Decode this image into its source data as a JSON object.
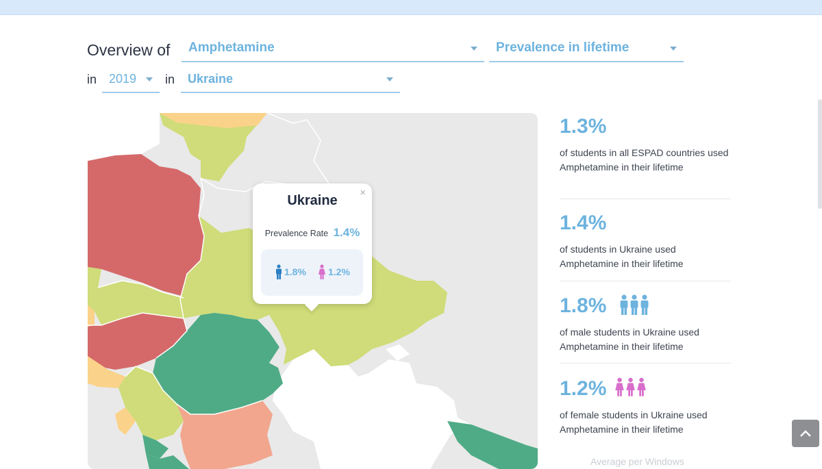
{
  "header": {
    "overview_of_label": "Overview of",
    "in_label_1": "in",
    "in_label_2": "in"
  },
  "filters": {
    "substance": "Amphetamine",
    "measure": "Prevalence in lifetime",
    "year": "2019",
    "country": "Ukraine"
  },
  "popup": {
    "country": "Ukraine",
    "close": "×",
    "rate_label": "Prevalence Rate",
    "rate_value": "1.4%",
    "male_value": "1.8%",
    "female_value": "1.2%"
  },
  "stats": [
    {
      "value": "1.3%",
      "text": "of students in all ESPAD countries used Amphetamine in their lifetime"
    },
    {
      "value": "1.4%",
      "text": "of students in Ukraine used Amphetamine in their lifetime"
    },
    {
      "value": "1.8%",
      "text": "of male students in Ukraine used Amphetamine in their lifetime"
    },
    {
      "value": "1.2%",
      "text": "of female students in Ukraine used Amphetamine in their lifetime"
    }
  ],
  "truncated_text": "Average per Windows",
  "colors": {
    "accent": "#6db3de",
    "male": "#2b7fc3",
    "female": "#d86fcb",
    "very_high": "#d5696a",
    "high": "#f2a68e",
    "medium_high": "#fbd28a",
    "medium": "#cfdc79",
    "low": "#4fab86",
    "no_data": "#e9e9e9",
    "sea": "#ffffff"
  },
  "icons": {
    "male": "male-person-icon",
    "female": "female-person-icon",
    "close": "close-icon",
    "scroll_top": "chevron-up-icon"
  }
}
